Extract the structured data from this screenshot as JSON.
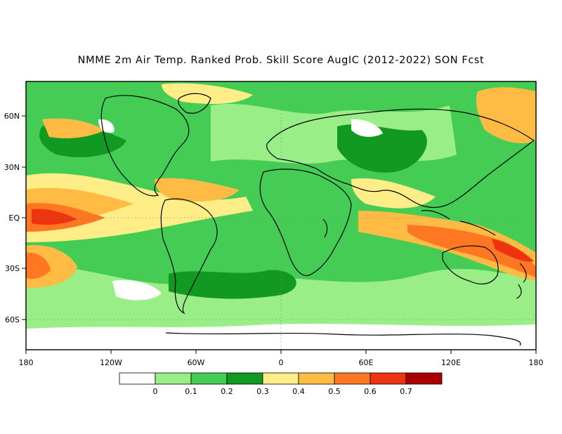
{
  "title": "NMME 2m Air Temp. Ranked Prob. Skill Score AugIC (2012-2022) SON Fcst",
  "map": {
    "x_ticks": [
      "180",
      "120W",
      "60W",
      "0",
      "60E",
      "120E",
      "180"
    ],
    "y_ticks": [
      "60N",
      "30N",
      "EQ",
      "30S",
      "60S"
    ]
  },
  "colorbar": {
    "colors": [
      "#ffffff",
      "#99ee88",
      "#44cc55",
      "#119922",
      "#ffee88",
      "#ffbb44",
      "#ff7722",
      "#ee3311",
      "#aa0000"
    ],
    "labels": [
      "0",
      "0.1",
      "0.2",
      "0.3",
      "0.4",
      "0.5",
      "0.6",
      "0.7"
    ]
  },
  "palette": {
    "ocean": "#ffbb44",
    "land": "#99ee88",
    "coast": "#000000"
  }
}
